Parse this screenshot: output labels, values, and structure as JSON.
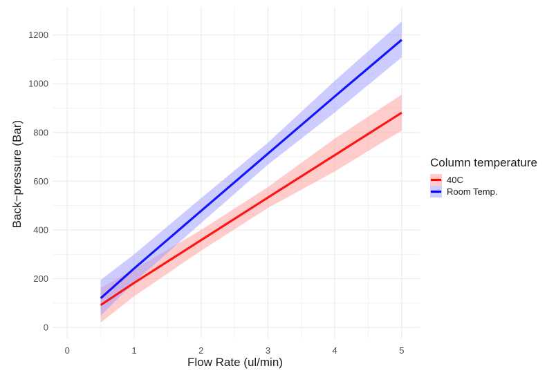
{
  "chart_data": {
    "type": "line",
    "title": "",
    "xlabel": "Flow Rate (ul/min)",
    "ylabel": "Back−pressure (Bar)",
    "xlim": [
      -0.22,
      5.27
    ],
    "ylim": [
      -45,
      1315
    ],
    "x_ticks": [
      0,
      1,
      2,
      3,
      4,
      5
    ],
    "y_ticks": [
      0,
      200,
      400,
      600,
      800,
      1000,
      1200
    ],
    "grid": true,
    "legend": {
      "title": "Column temperature",
      "position": "right"
    },
    "series": [
      {
        "name": "40C",
        "color": "#ff0000",
        "band_color": "#ff9999",
        "x": [
          0.5,
          1,
          2,
          3,
          4,
          5
        ],
        "y": [
          92,
          183,
          358,
          533,
          707,
          881
        ],
        "y_lower": [
          20,
          128,
          315,
          490,
          640,
          808
        ],
        "y_upper": [
          162,
          238,
          400,
          576,
          775,
          955
        ]
      },
      {
        "name": "Room Temp.",
        "color": "#0000ff",
        "band_color": "#9999ff",
        "x": [
          0.5,
          1,
          2,
          3,
          4,
          5
        ],
        "y": [
          120,
          242,
          478,
          713,
          948,
          1180
        ],
        "y_lower": [
          48,
          185,
          428,
          668,
          882,
          1108
        ],
        "y_upper": [
          195,
          300,
          530,
          758,
          1012,
          1255
        ]
      }
    ]
  }
}
